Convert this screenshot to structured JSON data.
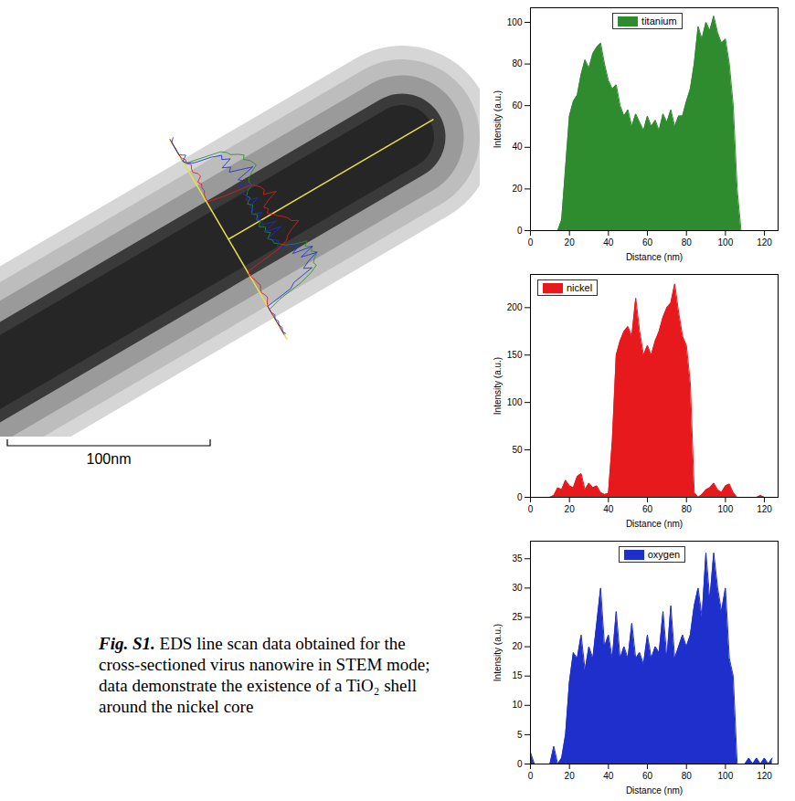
{
  "caption": {
    "label": "Fig. S1.",
    "text": "EDS line scan data obtained for the cross-sectioned virus nanowire in STEM mode; data demonstrate the existence of a TiO₂ shell around the nickel core"
  },
  "scale_bar": {
    "label": "100nm"
  },
  "chart_data": [
    {
      "type": "area",
      "xlabel": "Distance (nm)",
      "ylabel": "Intensity (a.u.)",
      "legend": "top",
      "x": [
        0,
        2,
        4,
        6,
        8,
        10,
        12,
        14,
        16,
        18,
        20,
        22,
        24,
        26,
        28,
        30,
        32,
        34,
        36,
        38,
        40,
        42,
        44,
        46,
        48,
        50,
        52,
        54,
        56,
        58,
        60,
        62,
        64,
        66,
        68,
        70,
        72,
        74,
        76,
        78,
        80,
        82,
        84,
        86,
        88,
        90,
        92,
        94,
        96,
        98,
        100,
        102,
        104,
        106,
        108,
        110,
        112,
        114,
        116,
        118,
        120,
        122,
        124
      ],
      "series": [
        {
          "name": "titanium",
          "color": "#2e8b2e",
          "values": [
            0,
            0,
            0,
            0,
            0,
            0,
            0,
            0,
            5,
            30,
            55,
            62,
            65,
            75,
            82,
            78,
            85,
            88,
            90,
            80,
            72,
            68,
            70,
            60,
            55,
            58,
            50,
            56,
            52,
            48,
            55,
            50,
            53,
            48,
            56,
            52,
            58,
            50,
            55,
            55,
            62,
            68,
            80,
            98,
            92,
            100,
            96,
            103,
            95,
            90,
            92,
            80,
            60,
            20,
            0,
            0,
            0,
            0,
            0,
            0,
            0,
            0,
            0
          ]
        }
      ],
      "xlim": [
        0,
        127
      ],
      "xticks": [
        0,
        20,
        40,
        60,
        80,
        100,
        120
      ],
      "ylim": [
        0,
        107
      ],
      "yticks": [
        0,
        20,
        40,
        60,
        80,
        100
      ]
    },
    {
      "type": "area",
      "xlabel": "Distance (nm)",
      "ylabel": "Intensity (a.u.)",
      "legend": "top-left",
      "x": [
        0,
        2,
        4,
        6,
        8,
        10,
        12,
        14,
        16,
        18,
        20,
        22,
        24,
        26,
        28,
        30,
        32,
        34,
        36,
        38,
        40,
        42,
        44,
        46,
        48,
        50,
        52,
        54,
        56,
        58,
        60,
        62,
        64,
        66,
        68,
        70,
        72,
        74,
        76,
        78,
        80,
        82,
        84,
        86,
        88,
        90,
        92,
        94,
        96,
        98,
        100,
        102,
        104,
        106,
        108,
        110,
        112,
        114,
        116,
        118,
        120,
        122,
        124
      ],
      "series": [
        {
          "name": "nickel",
          "color": "#e8191c",
          "values": [
            0,
            0,
            0,
            0,
            0,
            0,
            2,
            10,
            8,
            18,
            12,
            10,
            22,
            25,
            8,
            15,
            10,
            12,
            5,
            3,
            4,
            60,
            150,
            165,
            175,
            180,
            170,
            210,
            175,
            150,
            160,
            150,
            165,
            175,
            190,
            200,
            205,
            225,
            195,
            170,
            160,
            120,
            5,
            0,
            3,
            8,
            10,
            15,
            8,
            5,
            12,
            14,
            5,
            0,
            0,
            0,
            0,
            0,
            0,
            2,
            0,
            0,
            0
          ]
        }
      ],
      "xlim": [
        0,
        127
      ],
      "xticks": [
        0,
        20,
        40,
        60,
        80,
        100,
        120
      ],
      "ylim": [
        0,
        235
      ],
      "yticks": [
        0,
        50,
        100,
        150,
        200
      ]
    },
    {
      "type": "area",
      "xlabel": "Distance (nm)",
      "ylabel": "Intensity (a.u.)",
      "legend": "top",
      "x": [
        0,
        2,
        4,
        6,
        8,
        10,
        12,
        14,
        16,
        18,
        20,
        22,
        24,
        26,
        28,
        30,
        32,
        34,
        36,
        38,
        40,
        42,
        44,
        46,
        48,
        50,
        52,
        54,
        56,
        58,
        60,
        62,
        64,
        66,
        68,
        70,
        72,
        74,
        76,
        78,
        80,
        82,
        84,
        86,
        88,
        90,
        92,
        94,
        96,
        98,
        100,
        102,
        104,
        106,
        108,
        110,
        112,
        114,
        116,
        118,
        120,
        122,
        124
      ],
      "series": [
        {
          "name": "oxygen",
          "color": "#1f2fcc",
          "values": [
            2,
            0,
            0,
            0,
            0,
            0,
            3,
            0,
            1,
            5,
            14,
            19,
            18,
            22,
            16,
            20,
            18,
            24,
            30,
            20,
            22,
            18,
            26,
            18,
            20,
            18,
            24,
            18,
            19,
            17,
            22,
            18,
            20,
            19,
            26,
            18,
            27,
            18,
            20,
            22,
            20,
            22,
            27,
            30,
            25,
            36,
            28,
            36,
            30,
            26,
            30,
            18,
            15,
            0,
            0,
            0,
            1,
            0,
            1,
            0,
            1,
            0,
            1
          ]
        }
      ],
      "xlim": [
        0,
        127
      ],
      "xticks": [
        0,
        20,
        40,
        60,
        80,
        100,
        120
      ],
      "ylim": [
        0,
        38
      ],
      "yticks": [
        0,
        5,
        10,
        15,
        20,
        25,
        30,
        35
      ]
    }
  ]
}
